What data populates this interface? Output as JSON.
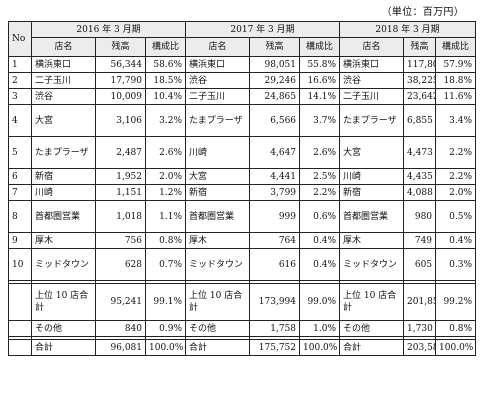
{
  "unit_note": "（単位：百万円）",
  "no_header": "No",
  "periods": [
    "2016 年 3 月期",
    "2017 年 3 月期",
    "2018 年 3 月期"
  ],
  "subheaders": [
    "店名",
    "残高",
    "構成比"
  ],
  "rows": [
    {
      "no": "1",
      "h": 1,
      "cells": [
        [
          "横浜東口",
          "56,344",
          "58.6%"
        ],
        [
          "横浜東口",
          "98,051",
          "55.8%"
        ],
        [
          "横浜東口",
          "117,804",
          "57.9%"
        ]
      ]
    },
    {
      "no": "2",
      "h": 1,
      "cells": [
        [
          "二子玉川",
          "17,790",
          "18.5%"
        ],
        [
          "渋谷",
          "29,246",
          "16.6%"
        ],
        [
          "渋谷",
          "38,225",
          "18.8%"
        ]
      ]
    },
    {
      "no": "3",
      "h": 1,
      "cells": [
        [
          "渋谷",
          "10,009",
          "10.4%"
        ],
        [
          "二子玉川",
          "24,865",
          "14.1%"
        ],
        [
          "二子玉川",
          "23,642",
          "11.6%"
        ]
      ]
    },
    {
      "no": "4",
      "h": 2,
      "cells": [
        [
          "大宮",
          "3,106",
          "3.2%"
        ],
        [
          "たまプラーザ",
          "6,566",
          "3.7%"
        ],
        [
          "たまプラーザ",
          "6,855",
          "3.4%"
        ]
      ]
    },
    {
      "no": "5",
      "h": 2,
      "cells": [
        [
          "たまプラーザ",
          "2,487",
          "2.6%"
        ],
        [
          "川崎",
          "4,647",
          "2.6%"
        ],
        [
          "大宮",
          "4,473",
          "2.2%"
        ]
      ]
    },
    {
      "no": "6",
      "h": 1,
      "cells": [
        [
          "新宿",
          "1,952",
          "2.0%"
        ],
        [
          "大宮",
          "4,441",
          "2.5%"
        ],
        [
          "川崎",
          "4,435",
          "2.2%"
        ]
      ]
    },
    {
      "no": "7",
      "h": 1,
      "cells": [
        [
          "川崎",
          "1,151",
          "1.2%"
        ],
        [
          "新宿",
          "3,799",
          "2.2%"
        ],
        [
          "新宿",
          "4,088",
          "2.0%"
        ]
      ]
    },
    {
      "no": "8",
      "h": 2,
      "cells": [
        [
          "首都圏営業",
          "1,018",
          "1.1%"
        ],
        [
          "首都圏営業",
          "999",
          "0.6%"
        ],
        [
          "首都圏営業",
          "980",
          "0.5%"
        ]
      ]
    },
    {
      "no": "9",
      "h": 1,
      "cells": [
        [
          "厚木",
          "756",
          "0.8%"
        ],
        [
          "厚木",
          "764",
          "0.4%"
        ],
        [
          "厚木",
          "749",
          "0.4%"
        ]
      ]
    },
    {
      "no": "10",
      "h": 2,
      "cells": [
        [
          "ミッドタウン",
          "628",
          "0.7%"
        ],
        [
          "ミッドタウン",
          "616",
          "0.4%"
        ],
        [
          "ミッドタウン",
          "605",
          "0.3%"
        ]
      ]
    }
  ],
  "summary": [
    {
      "h": 3,
      "cells": [
        [
          "上位 10 店合計",
          "95,241",
          "99.1%"
        ],
        [
          "上位 10 店合計",
          "173,994",
          "99.0%"
        ],
        [
          "上位 10 店合計",
          "201,857",
          "99.2%"
        ]
      ]
    },
    {
      "h": 1,
      "cells": [
        [
          "その他",
          "840",
          "0.9%"
        ],
        [
          "その他",
          "1,758",
          "1.0%"
        ],
        [
          "その他",
          "1,730",
          "0.8%"
        ]
      ]
    }
  ],
  "total": {
    "h": 1,
    "cells": [
      [
        "合計",
        "96,081",
        "100.0%"
      ],
      [
        "合計",
        "175,752",
        "100.0%"
      ],
      [
        "合計",
        "203,587",
        "100.0%"
      ]
    ]
  }
}
